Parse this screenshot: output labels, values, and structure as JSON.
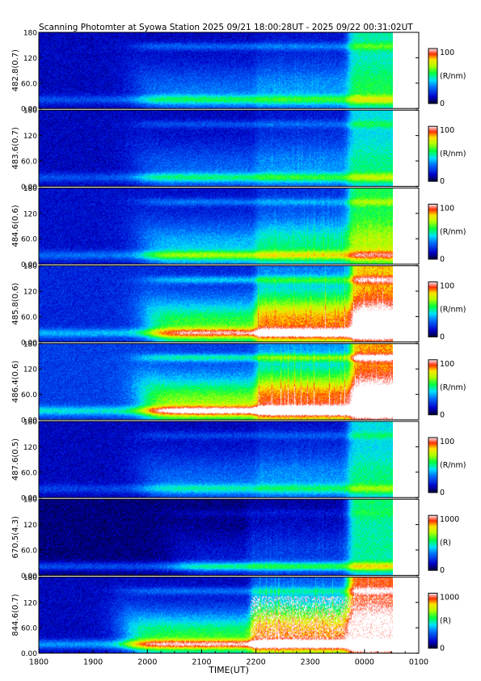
{
  "chart_data": {
    "type": "heatmap",
    "title": "Scanning Photomter at Syowa Station 2025 09/21 18:00:28UT - 2025 09/22 00:31:02UT",
    "xlabel": "TIME(UT)",
    "x_tick_labels": [
      "1800",
      "1900",
      "2000",
      "2100",
      "2200",
      "2300",
      "0000",
      "0100"
    ],
    "xlim_hours": [
      18.0,
      25.0
    ],
    "data_end_hour": 24.517,
    "ylim": [
      0,
      180
    ],
    "y_tick_labels": [
      "0.00",
      "60.0",
      "120",
      "180"
    ],
    "panels": [
      {
        "ylabel": "482.8(0.7)",
        "colorbar_label": "(R/nm)",
        "colorbar_ticks": [
          "0",
          "100"
        ],
        "intensity_range": [
          0,
          100
        ],
        "features": {
          "baseline": 0.12,
          "front_hour": 19.8,
          "post_front": 0.18,
          "surge_hour": 22.0,
          "surge": 0.1,
          "late_hour": 23.7,
          "late": 0.35,
          "lower_band": 0.25,
          "upper_band": 0.15,
          "white_fraction": 0.0
        }
      },
      {
        "ylabel": "483.6(0.7)",
        "colorbar_label": "(R/nm)",
        "colorbar_ticks": [
          "0",
          "100"
        ],
        "intensity_range": [
          0,
          100
        ],
        "features": {
          "baseline": 0.12,
          "front_hour": 19.8,
          "post_front": 0.16,
          "surge_hour": 22.0,
          "surge": 0.12,
          "late_hour": 23.7,
          "late": 0.3,
          "lower_band": 0.25,
          "upper_band": 0.12,
          "white_fraction": 0.0
        }
      },
      {
        "ylabel": "484.6(0.6)",
        "colorbar_label": "(R/nm)",
        "colorbar_ticks": [
          "0",
          "100"
        ],
        "intensity_range": [
          0,
          100
        ],
        "features": {
          "baseline": 0.14,
          "front_hour": 19.9,
          "post_front": 0.26,
          "surge_hour": 22.0,
          "surge": 0.2,
          "late_hour": 23.7,
          "late": 0.38,
          "lower_band": 0.3,
          "upper_band": 0.15,
          "white_fraction": 0.0
        }
      },
      {
        "ylabel": "485.8(0.6)",
        "colorbar_label": "(R/nm)",
        "colorbar_ticks": [
          "0",
          "100"
        ],
        "intensity_range": [
          0,
          100
        ],
        "features": {
          "baseline": 0.18,
          "front_hour": 20.0,
          "post_front": 0.42,
          "surge_hour": 22.0,
          "surge": 0.5,
          "late_hour": 23.75,
          "late": 0.55,
          "lower_band": 0.4,
          "upper_band": 0.2,
          "white_fraction": 0.0
        }
      },
      {
        "ylabel": "486.4(0.6)",
        "colorbar_label": "(R/nm)",
        "colorbar_ticks": [
          "0",
          "100"
        ],
        "intensity_range": [
          0,
          100
        ],
        "features": {
          "baseline": 0.22,
          "front_hour": 19.9,
          "post_front": 0.45,
          "surge_hour": 22.0,
          "surge": 0.45,
          "late_hour": 23.75,
          "late": 0.55,
          "lower_band": 0.45,
          "upper_band": 0.25,
          "white_fraction": 0.0
        }
      },
      {
        "ylabel": "487.6(0.5)",
        "colorbar_label": "(R/nm)",
        "colorbar_ticks": [
          "0",
          "100"
        ],
        "intensity_range": [
          0,
          100
        ],
        "features": {
          "baseline": 0.12,
          "front_hour": 19.9,
          "post_front": 0.17,
          "surge_hour": 22.0,
          "surge": 0.1,
          "late_hour": 23.7,
          "late": 0.3,
          "lower_band": 0.2,
          "upper_band": 0.1,
          "white_fraction": 0.0
        }
      },
      {
        "ylabel": "670.5(4.3)",
        "colorbar_label": "(R)",
        "colorbar_ticks": [
          "0",
          "1000"
        ],
        "intensity_range": [
          0,
          1000
        ],
        "features": {
          "baseline": 0.06,
          "front_hour": 20.5,
          "post_front": 0.1,
          "surge_hour": 21.85,
          "surge": 0.12,
          "late_hour": 23.7,
          "late": 0.45,
          "lower_band": 0.35,
          "upper_band": 0.05,
          "white_fraction": 0.0
        }
      },
      {
        "ylabel": "844.6(0.7)",
        "colorbar_label": "(R)",
        "colorbar_ticks": [
          "0",
          "1000"
        ],
        "intensity_range": [
          0,
          1000
        ],
        "features": {
          "baseline": 0.12,
          "front_hour": 19.6,
          "post_front": 0.45,
          "surge_hour": 21.9,
          "surge": 0.55,
          "late_hour": 23.7,
          "late": 0.7,
          "lower_band": 0.45,
          "upper_band": 0.15,
          "white_fraction": 0.12
        }
      }
    ]
  }
}
